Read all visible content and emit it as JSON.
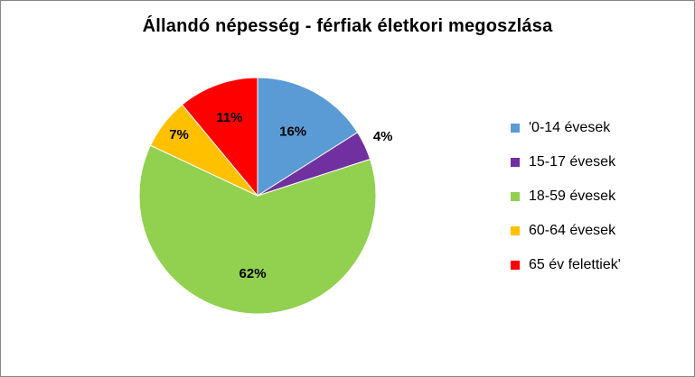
{
  "chart_data": {
    "type": "pie",
    "title": "Állandó népesség - férfiak életkori megoszlása",
    "categories": [
      "'0-14 évesek",
      "15-17 évesek",
      "18-59 évesek",
      "60-64 évesek",
      "65 év felettiek'"
    ],
    "values": [
      16,
      4,
      62,
      7,
      11
    ],
    "data_labels": [
      "16%",
      "4%",
      "62%",
      "7%",
      "11%"
    ],
    "colors": [
      "#5b9bd5",
      "#7030a0",
      "#92d050",
      "#ffc000",
      "#ff0000"
    ],
    "legend_position": "right"
  }
}
